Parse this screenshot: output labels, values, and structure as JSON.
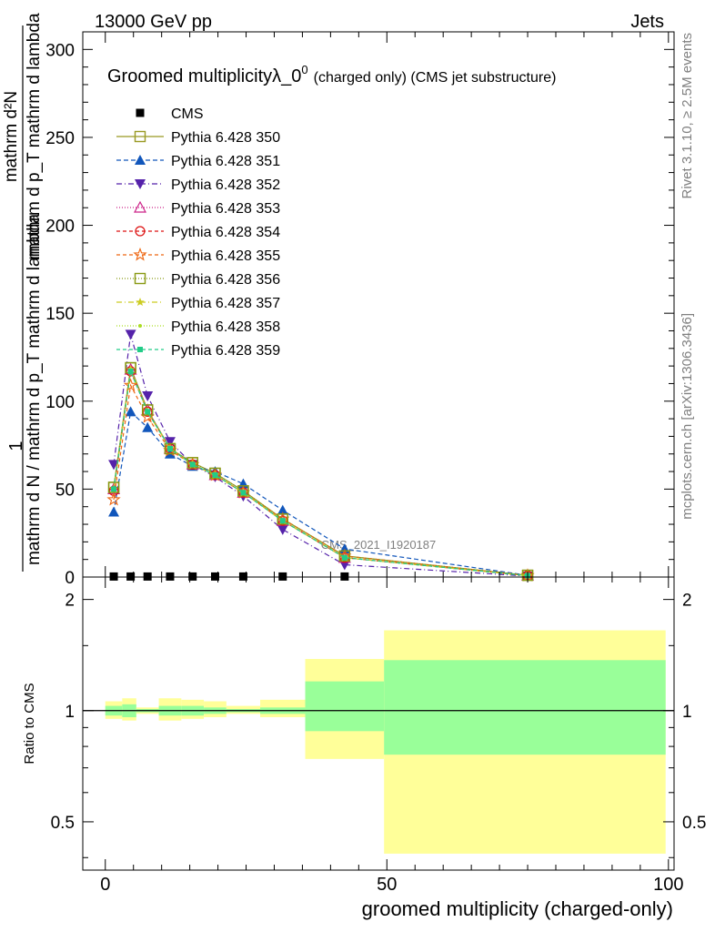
{
  "header": {
    "left": "13000 GeV pp",
    "right": "Jets"
  },
  "side_labels": {
    "rivet": "Rivet 3.1.10, ≥ 2.5M events",
    "mcplots": "mcplots.cern.ch [arXiv:1306.3436]"
  },
  "chart_data": [
    {
      "type": "line",
      "title": "Groomed multiplicityλ_0",
      "title_sup": "0",
      "title_suffix": "(charged only) (CMS jet substructure)",
      "watermark": "CMS_2021_I1920187",
      "ylabel": {
        "one": "1",
        "den": "mathrm d N / mathrm d p_T mathrm d lambda",
        "num": "mathrm d²N",
        "num_line2": "mathrm d p_T mathrm d lambda"
      },
      "xlim": [
        -4,
        101
      ],
      "ylim": [
        0,
        310
      ],
      "yticks": [
        0,
        50,
        100,
        150,
        200,
        250,
        300
      ],
      "ytick_labels": [
        "0",
        "50",
        "100",
        "150",
        "200",
        "250",
        "300"
      ],
      "x": [
        1.5,
        4.5,
        7.5,
        11.5,
        15.5,
        19.5,
        24.5,
        31.5,
        42.5,
        75
      ],
      "series": [
        {
          "name": "CMS",
          "color": "#000000",
          "marker": "square-filled",
          "dash": "",
          "values": [
            0.3,
            0.3,
            0.3,
            0.3,
            0.3,
            0.3,
            0.3,
            0.3,
            0.3,
            null
          ]
        },
        {
          "name": "Pythia 6.428 350",
          "color": "#999922",
          "marker": "square-open",
          "dash": "",
          "values": [
            51,
            119,
            95,
            73,
            65,
            59,
            49,
            33,
            12,
            1
          ]
        },
        {
          "name": "Pythia 6.428 351",
          "color": "#1156bb",
          "marker": "triangle-up-filled",
          "dash": "5,3",
          "values": [
            37,
            94,
            85,
            70,
            63,
            60,
            53,
            38,
            16,
            1
          ]
        },
        {
          "name": "Pythia 6.428 352",
          "color": "#5522aa",
          "marker": "triangle-down-filled",
          "dash": "6,3,1,3",
          "values": [
            64,
            138,
            103,
            77,
            64,
            57,
            46,
            27,
            7,
            0.5
          ]
        },
        {
          "name": "Pythia 6.428 353",
          "color": "#cc2288",
          "marker": "triangle-up-open",
          "dash": "1,2",
          "values": [
            50,
            118,
            95,
            73,
            64,
            58,
            48,
            32,
            11,
            0.8
          ]
        },
        {
          "name": "Pythia 6.428 354",
          "color": "#dd1111",
          "marker": "circle-open",
          "dash": "4,3",
          "values": [
            49,
            117,
            94,
            73,
            64,
            58,
            48,
            32,
            11,
            0.8
          ]
        },
        {
          "name": "Pythia 6.428 355",
          "color": "#ee6611",
          "marker": "star-open",
          "dash": "4,3",
          "values": [
            44,
            109,
            91,
            72,
            64,
            58,
            48,
            33,
            12,
            0.9
          ]
        },
        {
          "name": "Pythia 6.428 356",
          "color": "#889911",
          "marker": "square-open",
          "dash": "1,2",
          "values": [
            51,
            119,
            95,
            73,
            65,
            59,
            49,
            33,
            12,
            1
          ]
        },
        {
          "name": "Pythia 6.428 357",
          "color": "#cccc22",
          "marker": "star-small",
          "dash": "6,3,1,3",
          "values": [
            50,
            118,
            94,
            73,
            64,
            58,
            48,
            32,
            11,
            0.8
          ]
        },
        {
          "name": "Pythia 6.428 358",
          "color": "#aadd22",
          "marker": "dot",
          "dash": "1,2",
          "values": [
            50,
            117,
            94,
            73,
            64,
            58,
            48,
            32,
            11,
            0.8
          ]
        },
        {
          "name": "Pythia 6.428 359",
          "color": "#22cc88",
          "marker": "square-small",
          "dash": "4,3",
          "values": [
            50,
            117,
            94,
            73,
            64,
            58,
            48,
            32,
            11,
            0.8
          ]
        }
      ]
    },
    {
      "type": "area",
      "ylabel": "Ratio to CMS",
      "xlabel": "groomed multiplicity (charged-only)",
      "xlim": [
        -4,
        101
      ],
      "ylim": [
        0.37,
        2.3
      ],
      "xticks": [
        0,
        50,
        100
      ],
      "xtick_labels": [
        "0",
        "50",
        "100"
      ],
      "yticks": [
        0.5,
        1,
        2
      ],
      "ytick_labels": [
        "0.5",
        "1",
        "2"
      ],
      "reference": 1,
      "bins": [
        {
          "x": [
            0,
            3
          ],
          "inner": [
            0.97,
            1.03
          ],
          "outer": [
            0.95,
            1.06
          ]
        },
        {
          "x": [
            3,
            5.5
          ],
          "inner": [
            0.96,
            1.04
          ],
          "outer": [
            0.94,
            1.08
          ]
        },
        {
          "x": [
            5.5,
            9.5
          ],
          "inner": [
            0.99,
            1.01
          ],
          "outer": [
            0.98,
            1.02
          ]
        },
        {
          "x": [
            9.5,
            13.5
          ],
          "inner": [
            0.97,
            1.03
          ],
          "outer": [
            0.94,
            1.08
          ]
        },
        {
          "x": [
            13.5,
            17.5
          ],
          "inner": [
            0.97,
            1.03
          ],
          "outer": [
            0.95,
            1.07
          ]
        },
        {
          "x": [
            17.5,
            21.5
          ],
          "inner": [
            0.98,
            1.02
          ],
          "outer": [
            0.96,
            1.06
          ]
        },
        {
          "x": [
            21.5,
            27.5
          ],
          "inner": [
            0.99,
            1.01
          ],
          "outer": [
            0.98,
            1.03
          ]
        },
        {
          "x": [
            27.5,
            35.5
          ],
          "inner": [
            0.98,
            1.02
          ],
          "outer": [
            0.96,
            1.07
          ]
        },
        {
          "x": [
            35.5,
            49.5
          ],
          "inner": [
            0.88,
            1.2
          ],
          "outer": [
            0.74,
            1.38
          ]
        },
        {
          "x": [
            49.5,
            99.5
          ],
          "inner": [
            0.76,
            1.37
          ],
          "outer": [
            0.41,
            1.65
          ]
        }
      ],
      "colors": {
        "inner": "#99ff99",
        "outer": "#ffff99"
      }
    }
  ]
}
